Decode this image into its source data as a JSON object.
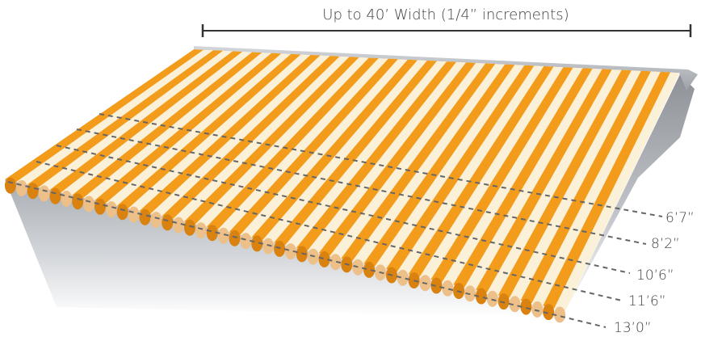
{
  "width_label": "Up to 40’ Width (1/4” increments)",
  "projection_labels": [
    "6’7”",
    "8’2”",
    "10’6”",
    "11’6”",
    "13’0”"
  ],
  "colors": {
    "stripe_orange": "#f39c1c",
    "stripe_cream": "#fbf1d9",
    "valance_dark": "#d9820f",
    "valance_light": "#edc08a",
    "roller_bar": "#b8bcc2",
    "shadow": "#b9bdc2",
    "dash": "#666666",
    "text": "#3f3f3f"
  }
}
